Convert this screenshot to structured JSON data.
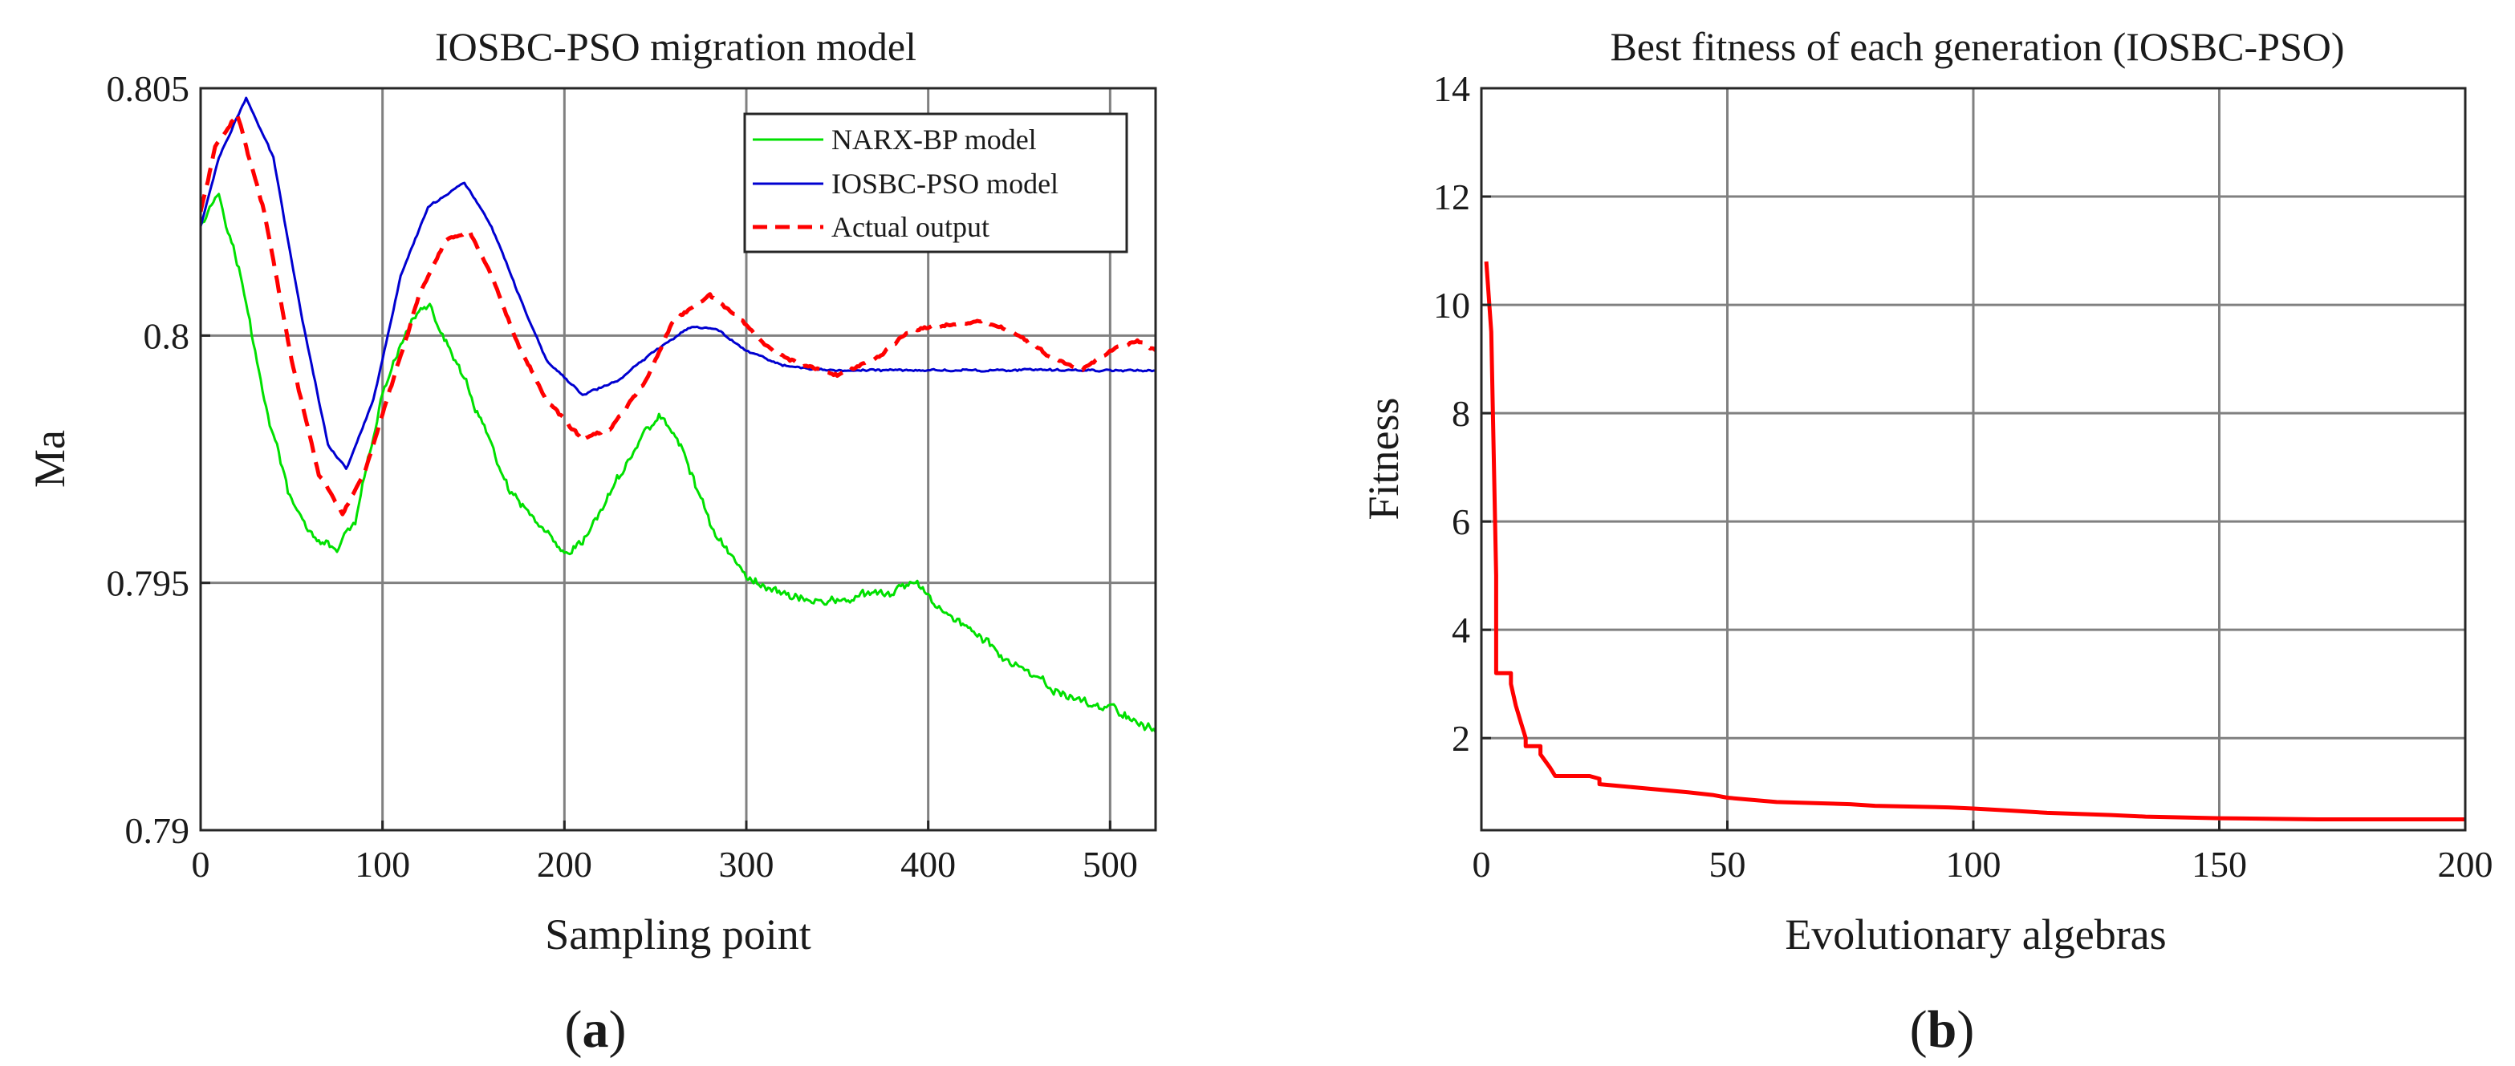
{
  "figure": {
    "panel_a_label": {
      "open": "(",
      "letter": "a",
      "close": ")"
    },
    "panel_b_label": {
      "open": "(",
      "letter": "b",
      "close": ")"
    }
  },
  "colors": {
    "narx": "#00e000",
    "iosbc": "#0000d0",
    "actual": "#ff0000",
    "fitness": "#ff0000",
    "grid": "#808080",
    "axis": "#262626"
  },
  "chart_data": [
    {
      "type": "line",
      "title": "IOSBC-PSO migration model",
      "xlabel": "Sampling point",
      "ylabel": "Ma",
      "xlim": [
        0,
        525
      ],
      "ylim": [
        0.79,
        0.805
      ],
      "xticks": [
        0,
        100,
        200,
        300,
        400,
        500
      ],
      "xtick_labels": [
        "0",
        "100",
        "200",
        "300",
        "400",
        "500"
      ],
      "yticks": [
        0.79,
        0.795,
        0.8,
        0.805
      ],
      "ytick_labels": [
        "0.79",
        "0.795",
        "0.8",
        "0.805"
      ],
      "grid": true,
      "legend_position": "top-right",
      "series": [
        {
          "name": "NARX-BP model",
          "style": "solid",
          "color": "#00e000",
          "noise": 0.00013,
          "x": [
            0,
            10,
            22,
            35,
            50,
            65,
            75,
            85,
            100,
            115,
            125,
            140,
            155,
            170,
            185,
            200,
            210,
            225,
            240,
            252,
            265,
            280,
            300,
            320,
            340,
            360,
            380,
            392,
            410,
            425,
            445,
            465,
            485,
            505,
            525
          ],
          "values": [
            0.8023,
            0.8029,
            0.8012,
            0.7987,
            0.7966,
            0.7958,
            0.7957,
            0.7962,
            0.7988,
            0.8003,
            0.8006,
            0.7995,
            0.7982,
            0.7968,
            0.7962,
            0.7955,
            0.7958,
            0.7968,
            0.7978,
            0.7984,
            0.7977,
            0.7962,
            0.7951,
            0.7948,
            0.7946,
            0.7947,
            0.7948,
            0.795,
            0.7944,
            0.794,
            0.7934,
            0.7929,
            0.7926,
            0.7924,
            0.792
          ]
        },
        {
          "name": "IOSBC-PSO model",
          "style": "solid",
          "color": "#0000d0",
          "noise": 3e-05,
          "x": [
            0,
            10,
            25,
            40,
            55,
            70,
            80,
            95,
            110,
            125,
            145,
            160,
            175,
            190,
            210,
            230,
            250,
            270,
            285,
            300,
            320,
            340,
            360,
            400,
            450,
            500,
            525
          ],
          "values": [
            0.8022,
            0.8036,
            0.8048,
            0.8036,
            0.8005,
            0.7978,
            0.7973,
            0.7987,
            0.8012,
            0.8026,
            0.8031,
            0.8022,
            0.8008,
            0.7995,
            0.7988,
            0.7991,
            0.7997,
            0.8002,
            0.8001,
            0.7997,
            0.7994,
            0.7993,
            0.7993,
            0.7993,
            0.7993,
            0.7993,
            0.7993
          ]
        },
        {
          "name": "Actual output",
          "style": "dashed",
          "color": "#ff0000",
          "noise": 4e-05,
          "x": [
            0,
            8,
            20,
            35,
            50,
            65,
            78,
            90,
            105,
            120,
            135,
            148,
            160,
            175,
            190,
            210,
            225,
            245,
            260,
            280,
            295,
            310,
            330,
            350,
            370,
            390,
            410,
            430,
            450,
            470,
            485,
            500,
            515,
            525
          ],
          "values": [
            0.8025,
            0.8038,
            0.8045,
            0.8025,
            0.7995,
            0.7972,
            0.7964,
            0.7972,
            0.799,
            0.8008,
            0.8019,
            0.8021,
            0.8012,
            0.7998,
            0.7987,
            0.7979,
            0.7981,
            0.7991,
            0.8003,
            0.8008,
            0.8004,
            0.7998,
            0.7994,
            0.7992,
            0.7995,
            0.8001,
            0.8002,
            0.8003,
            0.8,
            0.7995,
            0.7993,
            0.7997,
            0.7999,
            0.7997
          ]
        }
      ]
    },
    {
      "type": "line",
      "title": "Best fitness of each generation (IOSBC-PSO)",
      "xlabel": "Evolutionary algebras",
      "ylabel": "Fitness",
      "xlim": [
        0,
        200
      ],
      "ylim": [
        0.3,
        14
      ],
      "xticks": [
        0,
        50,
        100,
        150,
        200
      ],
      "xtick_labels": [
        "0",
        "50",
        "100",
        "150",
        "200"
      ],
      "yticks": [
        2,
        4,
        6,
        8,
        10,
        12,
        14
      ],
      "ytick_labels": [
        "2",
        "4",
        "6",
        "8",
        "10",
        "12",
        "14"
      ],
      "grid": true,
      "series": [
        {
          "name": "Best fitness",
          "style": "solid",
          "color": "#ff0000",
          "x": [
            1,
            2,
            3,
            3,
            4,
            6,
            6,
            7,
            8,
            9,
            9,
            12,
            12,
            14,
            15,
            15,
            22,
            24,
            24,
            30,
            36,
            42,
            47,
            50,
            60,
            75,
            80,
            95,
            100,
            108,
            115,
            128,
            135,
            150,
            170,
            200
          ],
          "values": [
            10.8,
            9.5,
            5.0,
            3.2,
            3.2,
            3.2,
            3.0,
            2.6,
            2.3,
            2.0,
            1.85,
            1.85,
            1.7,
            1.45,
            1.3,
            1.3,
            1.3,
            1.25,
            1.15,
            1.1,
            1.05,
            1.0,
            0.95,
            0.9,
            0.82,
            0.78,
            0.75,
            0.72,
            0.7,
            0.66,
            0.62,
            0.58,
            0.55,
            0.52,
            0.5,
            0.5
          ]
        }
      ]
    }
  ]
}
